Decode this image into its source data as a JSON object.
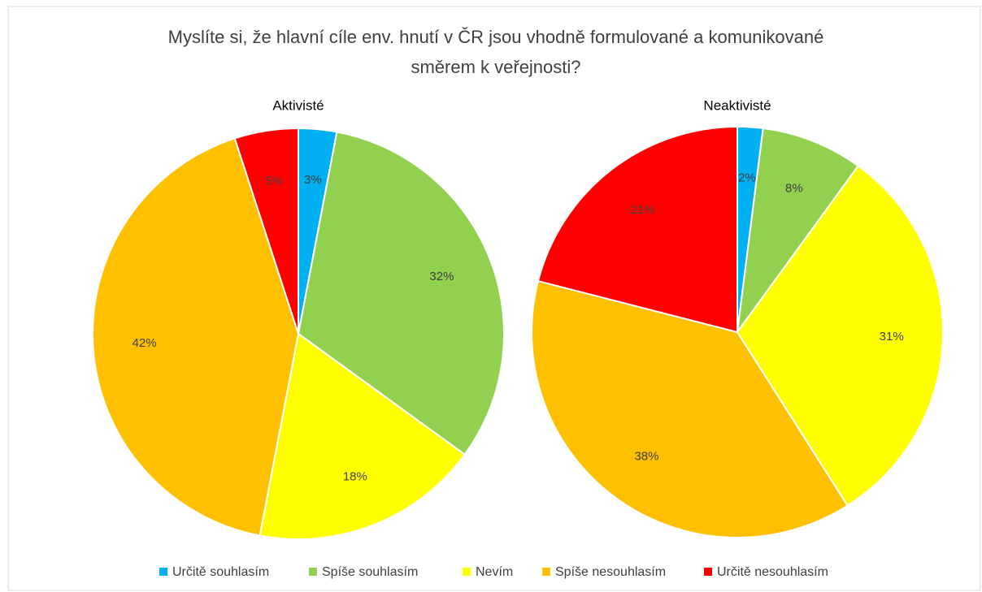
{
  "title": [
    "Myslíte si, že hlavní cíle env. hnutí v ČR jsou vhodně formulované a komunikované",
    "směrem k veřejnosti?"
  ],
  "chart_data": [
    {
      "type": "pie",
      "title": "Aktivisté",
      "categories": [
        "Určitě souhlasím",
        "Spíše souhlasím",
        "Nevím",
        "Spíše nesouhlasím",
        "Určitě nesouhlasím"
      ],
      "values": [
        3,
        32,
        18,
        42,
        5
      ],
      "value_labels": [
        "3%",
        "32%",
        "18%",
        "42%",
        "5%"
      ],
      "colors": [
        "#00b0f0",
        "#92d050",
        "#ffff00",
        "#ffc000",
        "#ff0000"
      ]
    },
    {
      "type": "pie",
      "title": "Neaktivisté",
      "categories": [
        "Určitě souhlasím",
        "Spíše souhlasím",
        "Nevím",
        "Spíše nesouhlasím",
        "Určitě nesouhlasím"
      ],
      "values": [
        2,
        8,
        31,
        38,
        21
      ],
      "value_labels": [
        "2%",
        "8%",
        "31%",
        "38%",
        "21%"
      ],
      "colors": [
        "#00b0f0",
        "#92d050",
        "#ffff00",
        "#ffc000",
        "#ff0000"
      ]
    }
  ]
}
